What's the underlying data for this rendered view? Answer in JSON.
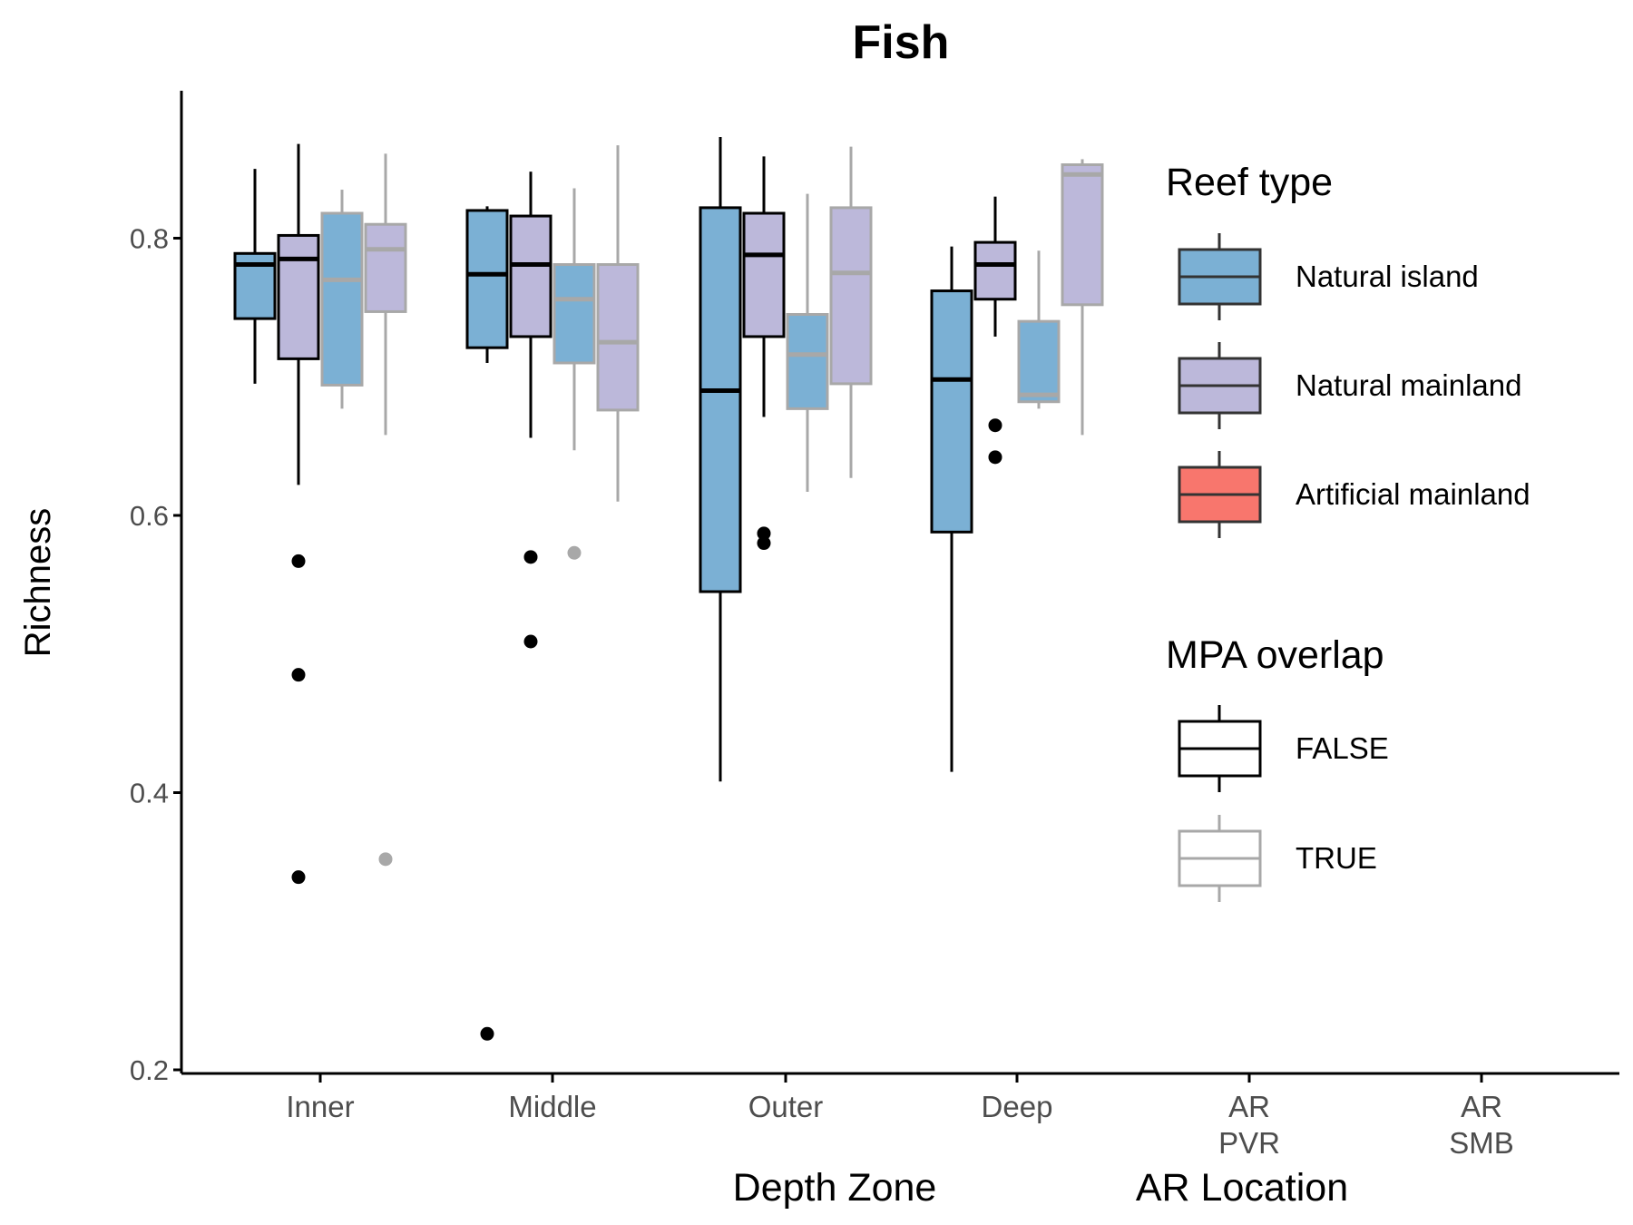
{
  "chart_data": {
    "type": "box",
    "title": "Fish",
    "xlabel": "Depth Zone",
    "xlabel2": "AR Location",
    "ylabel": "Richness",
    "ylim": [
      0.195,
      0.905
    ],
    "yticks": [
      0.2,
      0.4,
      0.6,
      0.8
    ],
    "ytick_labels": [
      "0.2",
      "0.4",
      "0.6",
      "0.8"
    ],
    "categories": [
      "Inner",
      "Middle",
      "Outer",
      "Deep",
      "AR\nPVR",
      "AR\nSMB"
    ],
    "grid": false,
    "legend_position": "right",
    "legend": {
      "reef_type": {
        "title": "Reef type",
        "items": [
          {
            "label": "Natural island",
            "color": "#7BB0D4"
          },
          {
            "label": "Natural mainland",
            "color": "#BCB8DA"
          },
          {
            "label": "Artificial mainland",
            "color": "#F8766D"
          }
        ]
      },
      "mpa_overlap": {
        "title": "MPA overlap",
        "items": [
          {
            "label": "FALSE",
            "color": "#000000"
          },
          {
            "label": "TRUE",
            "color": "#A8A8A8"
          }
        ]
      }
    },
    "boxes": [
      {
        "category": "Inner",
        "reef_type": "Natural island",
        "mpa": "FALSE",
        "whisker_low": 0.695,
        "q1": 0.742,
        "median": 0.781,
        "q3": 0.789,
        "whisker_high": 0.85,
        "outliers": []
      },
      {
        "category": "Inner",
        "reef_type": "Natural mainland",
        "mpa": "FALSE",
        "whisker_low": 0.622,
        "q1": 0.713,
        "median": 0.785,
        "q3": 0.802,
        "whisker_high": 0.868,
        "outliers": [
          0.567,
          0.485,
          0.339
        ]
      },
      {
        "category": "Inner",
        "reef_type": "Natural island",
        "mpa": "TRUE",
        "whisker_low": 0.677,
        "q1": 0.694,
        "median": 0.77,
        "q3": 0.818,
        "whisker_high": 0.835,
        "outliers": []
      },
      {
        "category": "Inner",
        "reef_type": "Natural mainland",
        "mpa": "TRUE",
        "whisker_low": 0.658,
        "q1": 0.747,
        "median": 0.792,
        "q3": 0.81,
        "whisker_high": 0.861,
        "outliers": [
          0.352
        ]
      },
      {
        "category": "Middle",
        "reef_type": "Natural island",
        "mpa": "FALSE",
        "whisker_low": 0.71,
        "q1": 0.721,
        "median": 0.774,
        "q3": 0.82,
        "whisker_high": 0.823,
        "outliers": [
          0.226
        ]
      },
      {
        "category": "Middle",
        "reef_type": "Natural mainland",
        "mpa": "FALSE",
        "whisker_low": 0.656,
        "q1": 0.729,
        "median": 0.781,
        "q3": 0.816,
        "whisker_high": 0.848,
        "outliers": [
          0.57,
          0.509
        ]
      },
      {
        "category": "Middle",
        "reef_type": "Natural island",
        "mpa": "TRUE",
        "whisker_low": 0.647,
        "q1": 0.71,
        "median": 0.756,
        "q3": 0.781,
        "whisker_high": 0.836,
        "outliers": [
          0.573
        ]
      },
      {
        "category": "Middle",
        "reef_type": "Natural mainland",
        "mpa": "TRUE",
        "whisker_low": 0.61,
        "q1": 0.676,
        "median": 0.725,
        "q3": 0.781,
        "whisker_high": 0.867,
        "outliers": []
      },
      {
        "category": "Outer",
        "reef_type": "Natural island",
        "mpa": "FALSE",
        "whisker_low": 0.408,
        "q1": 0.545,
        "median": 0.69,
        "q3": 0.822,
        "whisker_high": 0.873,
        "outliers": []
      },
      {
        "category": "Outer",
        "reef_type": "Natural mainland",
        "mpa": "FALSE",
        "whisker_low": 0.671,
        "q1": 0.729,
        "median": 0.788,
        "q3": 0.818,
        "whisker_high": 0.859,
        "outliers": [
          0.587,
          0.58
        ]
      },
      {
        "category": "Outer",
        "reef_type": "Natural island",
        "mpa": "TRUE",
        "whisker_low": 0.617,
        "q1": 0.677,
        "median": 0.716,
        "q3": 0.745,
        "whisker_high": 0.832,
        "outliers": []
      },
      {
        "category": "Outer",
        "reef_type": "Natural mainland",
        "mpa": "TRUE",
        "whisker_low": 0.627,
        "q1": 0.695,
        "median": 0.775,
        "q3": 0.822,
        "whisker_high": 0.866,
        "outliers": []
      },
      {
        "category": "Deep",
        "reef_type": "Natural island",
        "mpa": "FALSE",
        "whisker_low": 0.415,
        "q1": 0.588,
        "median": 0.698,
        "q3": 0.762,
        "whisker_high": 0.794,
        "outliers": []
      },
      {
        "category": "Deep",
        "reef_type": "Natural mainland",
        "mpa": "FALSE",
        "whisker_low": 0.729,
        "q1": 0.756,
        "median": 0.781,
        "q3": 0.797,
        "whisker_high": 0.83,
        "outliers": [
          0.665,
          0.642
        ]
      },
      {
        "category": "Deep",
        "reef_type": "Natural island",
        "mpa": "TRUE",
        "whisker_low": 0.677,
        "q1": 0.682,
        "median": 0.687,
        "q3": 0.74,
        "whisker_high": 0.791,
        "outliers": []
      },
      {
        "category": "Deep",
        "reef_type": "Natural mainland",
        "mpa": "TRUE",
        "whisker_low": 0.658,
        "q1": 0.752,
        "median": 0.846,
        "q3": 0.853,
        "whisker_high": 0.857,
        "outliers": []
      }
    ]
  }
}
